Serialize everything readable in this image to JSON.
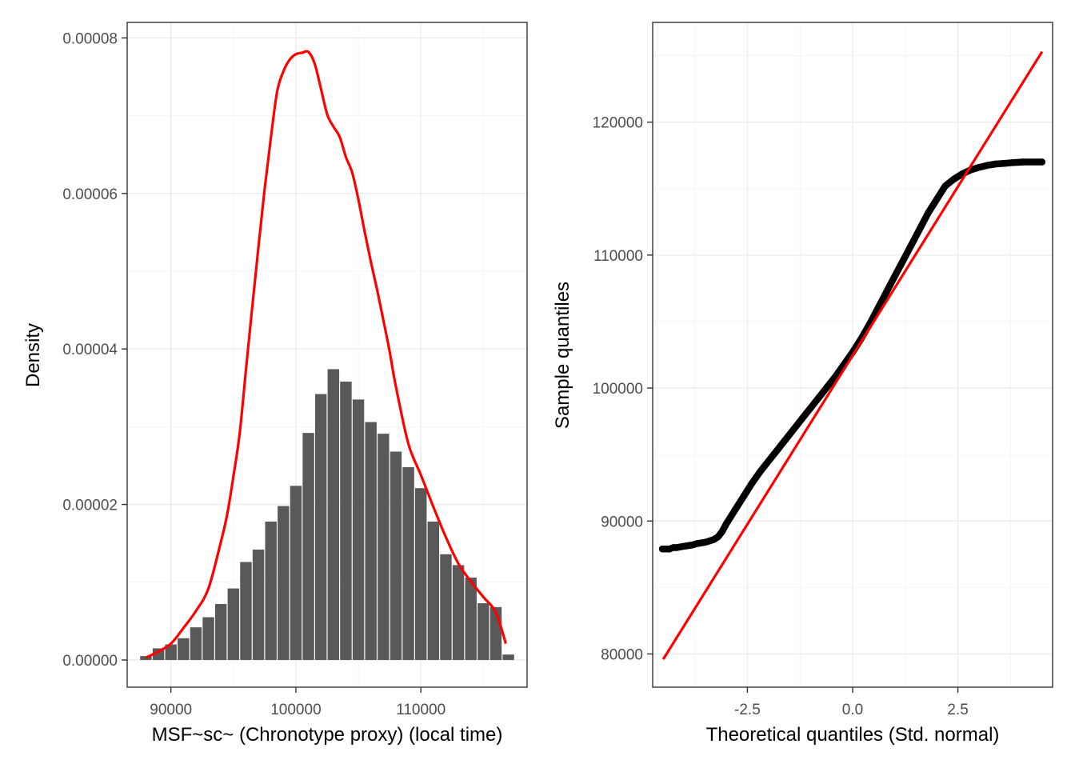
{
  "colors": {
    "bar": "#595959",
    "density_line": "#ff0000",
    "qq_points": "#000000",
    "qq_line": "#ff0000",
    "grid": "#ebebeb",
    "border": "#333333"
  },
  "chart_data": [
    {
      "type": "bar",
      "subtype": "histogram_with_density",
      "title": "",
      "xlabel": "MSF~sc~ (Chronotype proxy) (local time)",
      "ylabel": "Density",
      "xlim": [
        86500,
        118500
      ],
      "ylim": [
        -3.5e-06,
        8.2e-05
      ],
      "x_ticks": [
        90000,
        100000,
        110000
      ],
      "x_tick_labels": [
        "90000",
        "100000",
        "110000"
      ],
      "y_ticks": [
        0,
        2e-05,
        4e-05,
        6e-05,
        8e-05
      ],
      "y_tick_labels": [
        "0.00000",
        "0.00002",
        "0.00004",
        "0.00006",
        "0.00008"
      ],
      "grid": true,
      "bin_width": 1000,
      "bin_centers": [
        88000,
        89000,
        90000,
        91000,
        92000,
        93000,
        94000,
        95000,
        96000,
        97000,
        98000,
        99000,
        100000,
        101000,
        102000,
        103000,
        104000,
        105000,
        106000,
        107000,
        108000,
        109000,
        110000,
        111000,
        112000,
        113000,
        114000,
        115000,
        116000,
        117000
      ],
      "values": [
        5e-07,
        1.5e-06,
        2e-06,
        2.8e-06,
        4.2e-06,
        5.5e-06,
        7.2e-06,
        9.2e-06,
        1.26e-05,
        1.42e-05,
        1.78e-05,
        1.98e-05,
        2.24e-05,
        2.92e-05,
        3.42e-05,
        3.74e-05,
        3.58e-05,
        3.35e-05,
        3.06e-05,
        2.91e-05,
        2.68e-05,
        2.48e-05,
        2.21e-05,
        1.78e-05,
        1.36e-05,
        1.22e-05,
        1.06e-05,
        7.3e-06,
        6.8e-06,
        7e-07
      ],
      "density_curve": {
        "x": [
          88000,
          89000,
          90000,
          91000,
          92000,
          93000,
          94000,
          94500,
          95000,
          95500,
          96000,
          96500,
          97000,
          97500,
          98000,
          98500,
          99000,
          99500,
          100000,
          100500,
          101000,
          101500,
          102000,
          102500,
          103000,
          103500,
          104000,
          104500,
          105000,
          105500,
          106000,
          106500,
          107000,
          107500,
          108000,
          109000,
          110000,
          111000,
          112000,
          113000,
          114000,
          115000,
          116000,
          116800
        ],
        "y": [
          3e-07,
          1.1e-06,
          2.1e-06,
          4.1e-06,
          6.3e-06,
          9.2e-06,
          1.52e-05,
          1.87e-05,
          2.36e-05,
          2.91e-05,
          3.72e-05,
          4.53e-05,
          5.31e-05,
          6.06e-05,
          6.72e-05,
          7.31e-05,
          7.57e-05,
          7.72e-05,
          7.79e-05,
          7.81e-05,
          7.82e-05,
          7.67e-05,
          7.35e-05,
          7.02e-05,
          6.86e-05,
          6.73e-05,
          6.47e-05,
          6.27e-05,
          5.92e-05,
          5.51e-05,
          5.12e-05,
          4.76e-05,
          4.37e-05,
          3.97e-05,
          3.52e-05,
          2.78e-05,
          2.38e-05,
          1.97e-05,
          1.58e-05,
          1.24e-05,
          1.01e-05,
          8.1e-06,
          6.1e-06,
          2.1e-06
        ]
      }
    },
    {
      "type": "scatter",
      "subtype": "qq_plot",
      "title": "",
      "xlabel": "Theoretical quantiles (Std. normal)",
      "ylabel": "Sample quantiles",
      "xlim": [
        -4.75,
        4.75
      ],
      "ylim": [
        77500,
        127500
      ],
      "x_ticks": [
        -2.5,
        0,
        2.5
      ],
      "x_tick_labels": [
        "-2.5",
        "0.0",
        "2.5"
      ],
      "y_ticks": [
        80000,
        90000,
        100000,
        110000,
        120000
      ],
      "y_tick_labels": [
        "80000",
        "90000",
        "100000",
        "110000",
        "120000"
      ],
      "grid": true,
      "points": {
        "x": [
          -4.52,
          -4.35,
          -4.26,
          -4.18,
          -4.1,
          -4.0,
          -3.9,
          -3.8,
          -3.7,
          -3.6,
          -3.5,
          -3.4,
          -3.3,
          -3.2,
          -3.1,
          -3.0,
          -2.9,
          -2.8,
          -2.6,
          -2.4,
          -2.2,
          -2.0,
          -1.8,
          -1.6,
          -1.4,
          -1.2,
          -1.0,
          -0.8,
          -0.6,
          -0.4,
          -0.2,
          0.0,
          0.2,
          0.4,
          0.6,
          0.8,
          1.0,
          1.2,
          1.4,
          1.6,
          1.8,
          2.0,
          2.2,
          2.4,
          2.6,
          2.8,
          3.0,
          3.2,
          3.4,
          3.6,
          3.8,
          4.05,
          4.5
        ],
        "y": [
          87900,
          87900,
          88000,
          88000,
          88050,
          88100,
          88150,
          88200,
          88300,
          88350,
          88400,
          88500,
          88600,
          88800,
          89200,
          89800,
          90300,
          90800,
          91800,
          92800,
          93700,
          94500,
          95300,
          96100,
          96900,
          97700,
          98500,
          99300,
          100100,
          100900,
          101800,
          102700,
          103700,
          104800,
          106000,
          107200,
          108400,
          109600,
          110800,
          112000,
          113200,
          114200,
          115200,
          115700,
          116100,
          116400,
          116600,
          116750,
          116850,
          116900,
          116950,
          117000,
          117000
        ]
      },
      "reference_line": {
        "x": [
          -4.5,
          4.5
        ],
        "y": [
          79600,
          125300
        ]
      }
    }
  ]
}
